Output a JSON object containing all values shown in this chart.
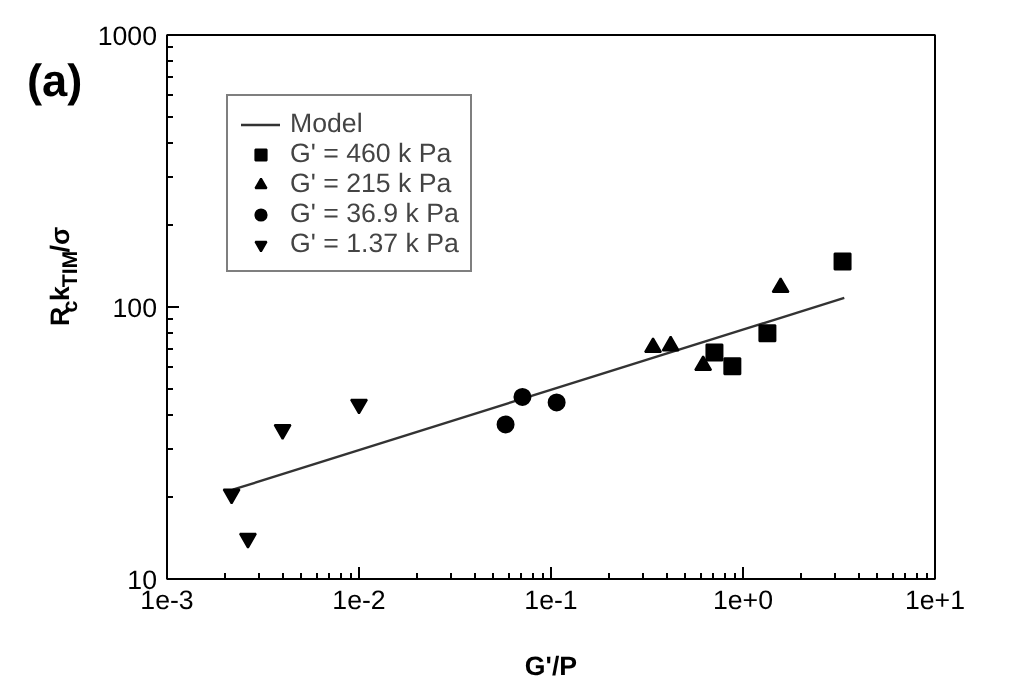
{
  "chart_data": {
    "type": "scatter",
    "title": "(a)",
    "xlabel": "G'/P",
    "ylabel": "R$_{c}$k$_{TIM}$/σ",
    "log": "xy",
    "xlim": [
      0.001,
      10
    ],
    "ylim": [
      10,
      1000
    ],
    "xticks": [
      {
        "value": 0.001,
        "label": "1e-3"
      },
      {
        "value": 0.01,
        "label": "1e-2"
      },
      {
        "value": 0.1,
        "label": "1e-1"
      },
      {
        "value": 1,
        "label": "1e+0"
      },
      {
        "value": 10,
        "label": "1e+1"
      }
    ],
    "yticks": [
      10,
      100,
      1000
    ],
    "grid": false,
    "legend": "top left",
    "series": [
      {
        "name": "Model",
        "type": "line",
        "color": "#333333",
        "marker": "none",
        "line_style": "solid",
        "x": [
          0.0022,
          3.37
        ],
        "values": [
          21.3,
          108
        ]
      },
      {
        "name": "G' = 460 k Pa",
        "color": "#000000",
        "marker": "square",
        "x": [
          3.3,
          0.71,
          0.88,
          1.34
        ],
        "values": [
          147,
          68,
          60.5,
          80
        ]
      },
      {
        "name": "G' = 215 k Pa",
        "color": "#000000",
        "marker": "triangle",
        "x": [
          1.57,
          0.34,
          0.42,
          0.62
        ],
        "values": [
          118,
          71,
          72,
          61
        ]
      },
      {
        "name": "G' = 36.9 k Pa",
        "color": "#000000",
        "marker": "circle",
        "x": [
          0.058,
          0.071,
          0.107
        ],
        "values": [
          37,
          46.7,
          44.6
        ]
      },
      {
        "name": "G' = 1.37 k Pa",
        "color": "#000000",
        "marker": "triangle",
        "x": [
          0.00217,
          0.00264,
          0.004,
          0.01
        ],
        "values": [
          20.5,
          14.1,
          35.4,
          43.9
        ]
      }
    ]
  }
}
